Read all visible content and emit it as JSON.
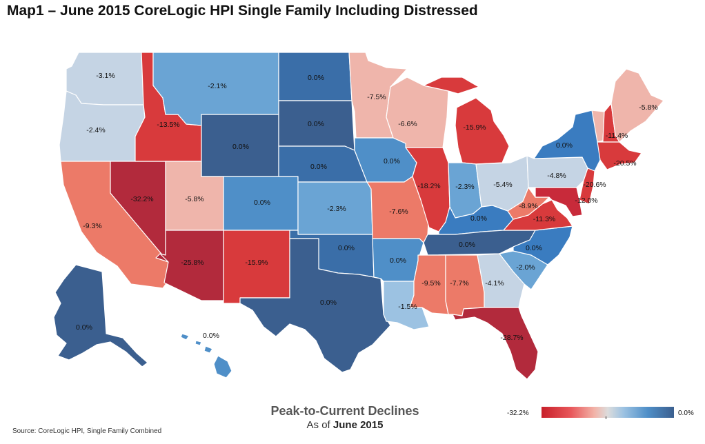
{
  "title": "Map1 – June 2015 CoreLogic HPI Single Family Including Distressed",
  "legend": {
    "title": "Peak-to-Current Declines",
    "subtitle_prefix": "As of",
    "subtitle_date": "June 2015",
    "min_label": "-32.2%",
    "max_label": "0.0%"
  },
  "source": "Source: CoreLogic HPI, Single Family Combined",
  "colors": {
    "deep_red": "#c8202a",
    "red": "#e0484c",
    "salmon": "#ec7a68",
    "light_pink": "#efb5ab",
    "light_gray_blue": "#c5d4e4",
    "light_blue": "#9cc2e2",
    "mid_blue": "#5c9ad4",
    "blue": "#3f7cc0",
    "dark_blue": "#3b5f8f"
  },
  "chart_data": {
    "type": "choropleth",
    "metric": "Peak-to-Current Declines",
    "scale_range": [
      -32.2,
      0.0
    ],
    "states": [
      {
        "name": "WA",
        "label": "-3.1%"
      },
      {
        "name": "OR",
        "label": "-2.4%"
      },
      {
        "name": "CA",
        "label": "-9.3%"
      },
      {
        "name": "NV",
        "label": "-32.2%"
      },
      {
        "name": "ID",
        "label": "-13.5%"
      },
      {
        "name": "MT",
        "label": "-2.1%"
      },
      {
        "name": "WY",
        "label": "0.0%"
      },
      {
        "name": "UT",
        "label": "-5.8%"
      },
      {
        "name": "AZ",
        "label": "-25.8%"
      },
      {
        "name": "NM",
        "label": "-15.9%"
      },
      {
        "name": "CO",
        "label": "0.0%"
      },
      {
        "name": "ND",
        "label": "0.0%"
      },
      {
        "name": "SD",
        "label": "0.0%"
      },
      {
        "name": "NE",
        "label": "0.0%"
      },
      {
        "name": "KS",
        "label": "-2.3%"
      },
      {
        "name": "OK",
        "label": "0.0%"
      },
      {
        "name": "TX",
        "label": "0.0%"
      },
      {
        "name": "MN",
        "label": "-7.5%"
      },
      {
        "name": "IA",
        "label": "0.0%"
      },
      {
        "name": "MO",
        "label": "-7.6%"
      },
      {
        "name": "AR",
        "label": "0.0%"
      },
      {
        "name": "LA",
        "label": "-1.5%"
      },
      {
        "name": "WI",
        "label": "-6.6%"
      },
      {
        "name": "IL",
        "label": "-18.2%"
      },
      {
        "name": "MI",
        "label": "-15.9%"
      },
      {
        "name": "IN",
        "label": "-2.3%"
      },
      {
        "name": "OH",
        "label": "-5.4%"
      },
      {
        "name": "KY",
        "label": "0.0%"
      },
      {
        "name": "TN",
        "label": "0.0%"
      },
      {
        "name": "MS",
        "label": "-9.5%"
      },
      {
        "name": "AL",
        "label": "-7.7%"
      },
      {
        "name": "GA",
        "label": "-4.1%"
      },
      {
        "name": "FL",
        "label": "-28.7%"
      },
      {
        "name": "SC",
        "label": "-2.0%"
      },
      {
        "name": "NC",
        "label": "0.0%"
      },
      {
        "name": "VA",
        "label": "-11.3%"
      },
      {
        "name": "WV",
        "label": "-8.9%"
      },
      {
        "name": "PA",
        "label": "-4.8%"
      },
      {
        "name": "NY",
        "label": "0.0%"
      },
      {
        "name": "NJ",
        "label": "-20.6%"
      },
      {
        "name": "MD",
        "label": "-12.0%"
      },
      {
        "name": "NH",
        "label": "-11.4%"
      },
      {
        "name": "MA",
        "label": "-20.5%"
      },
      {
        "name": "ME",
        "label": "-5.8%"
      },
      {
        "name": "AK",
        "label": "0.0%"
      },
      {
        "name": "HI",
        "label": "0.0%"
      }
    ]
  }
}
